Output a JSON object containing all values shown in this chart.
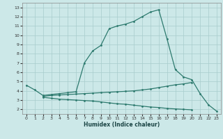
{
  "xlabel": "Humidex (Indice chaleur)",
  "x": [
    0,
    1,
    2,
    3,
    4,
    5,
    6,
    7,
    8,
    9,
    10,
    11,
    12,
    13,
    14,
    15,
    16,
    17,
    18,
    19,
    20,
    21,
    22,
    23
  ],
  "curve_main": [
    4.6,
    4.1,
    3.5,
    3.6,
    3.7,
    3.8,
    3.9,
    7.0,
    8.3,
    8.9,
    10.7,
    11.0,
    11.2,
    11.5,
    12.0,
    12.5,
    12.75,
    9.6,
    6.3,
    5.5,
    5.2,
    3.7,
    2.5,
    1.8
  ],
  "curve_upper_flat": [
    null,
    null,
    3.4,
    3.5,
    3.55,
    3.6,
    3.65,
    3.7,
    3.75,
    3.8,
    3.85,
    3.9,
    3.95,
    4.0,
    4.1,
    4.2,
    4.35,
    4.5,
    4.65,
    4.75,
    4.9,
    null,
    null,
    null
  ],
  "curve_lower_flat": [
    null,
    null,
    3.3,
    3.2,
    3.1,
    3.05,
    3.0,
    2.95,
    2.9,
    2.8,
    2.7,
    2.6,
    2.55,
    2.45,
    2.35,
    2.25,
    2.2,
    2.1,
    2.05,
    2.0,
    1.95,
    null,
    null,
    null
  ],
  "line_color": "#2d7a6e",
  "bg_color": "#cce8e8",
  "grid_color": "#a8cccc",
  "xlim": [
    -0.5,
    23.5
  ],
  "ylim": [
    1.5,
    13.5
  ],
  "yticks": [
    2,
    3,
    4,
    5,
    6,
    7,
    8,
    9,
    10,
    11,
    12,
    13
  ],
  "xticks": [
    0,
    1,
    2,
    3,
    4,
    5,
    6,
    7,
    8,
    9,
    10,
    11,
    12,
    13,
    14,
    15,
    16,
    17,
    18,
    19,
    20,
    21,
    22,
    23
  ]
}
